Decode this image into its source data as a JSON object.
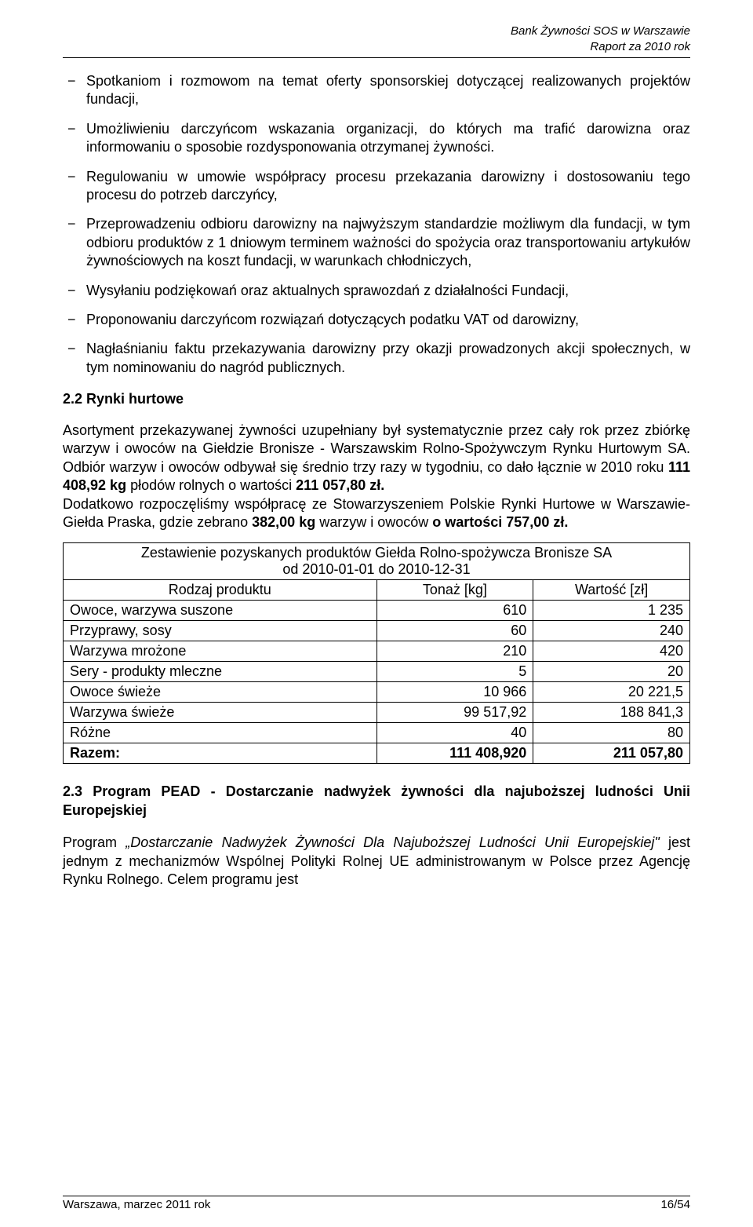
{
  "header": {
    "line1": "Bank Żywności SOS w Warszawie",
    "line2": "Raport za 2010 rok"
  },
  "bullets": [
    "Spotkaniom i rozmowom na temat oferty sponsorskiej dotyczącej realizowanych projektów fundacji,",
    "Umożliwieniu darczyńcom wskazania organizacji, do których ma trafić darowizna oraz informowaniu o sposobie rozdysponowania otrzymanej żywności.",
    "Regulowaniu w umowie współpracy procesu przekazania darowizny i dostosowaniu tego procesu do potrzeb darczyńcy,",
    "Przeprowadzeniu odbioru darowizny na najwyższym standardzie możliwym dla fundacji, w tym odbioru produktów z 1 dniowym terminem ważności do spożycia oraz transportowaniu artykułów żywnościowych na koszt fundacji, w warunkach chłodniczych,",
    "Wysyłaniu podziękowań oraz aktualnych sprawozdań z działalności Fundacji,",
    "Proponowaniu darczyńcom rozwiązań dotyczących podatku VAT od darowizny,",
    "Nagłaśnianiu faktu przekazywania darowizny przy okazji prowadzonych akcji społecznych, w tym nominowaniu do nagród publicznych."
  ],
  "section22": {
    "heading": "2.2 Rynki hurtowe",
    "p1_a": "Asortyment przekazywanej żywności uzupełniany był systematycznie przez cały rok przez zbiórkę warzyw i owoców na Giełdzie Bronisze - Warszawskim Rolno-Spożywczym Rynku Hurtowym SA. Odbiór warzyw i owoców odbywał się średnio trzy razy w tygodniu, co dało łącznie w 2010 roku ",
    "p1_bold1": "111 408,92 kg",
    "p1_b": " płodów rolnych o wartości ",
    "p1_bold2": "211 057,80 zł.",
    "p2_a": "Dodatkowo rozpoczęliśmy współpracę ze Stowarzyszeniem Polskie Rynki Hurtowe w Warszawie- Giełda Praska, gdzie zebrano ",
    "p2_bold1": "382,00 kg",
    "p2_b": " warzyw i owoców ",
    "p2_bold2": "o wartości 757,00 zł."
  },
  "table": {
    "title": "Zestawienie pozyskanych produktów Giełda Rolno-spożywcza Bronisze SA\nod 2010-01-01 do 2010-12-31",
    "columns": [
      "Rodzaj produktu",
      "Tonaż [kg]",
      "Wartość [zł]"
    ],
    "col_widths": [
      "50%",
      "25%",
      "25%"
    ],
    "rows": [
      [
        "Owoce, warzywa suszone",
        "610",
        "1 235"
      ],
      [
        "Przyprawy, sosy",
        "60",
        "240"
      ],
      [
        "Warzywa mrożone",
        "210",
        "420"
      ],
      [
        "Sery - produkty mleczne",
        "5",
        "20"
      ],
      [
        "Owoce świeże",
        "10 966",
        "20 221,5"
      ],
      [
        "Warzywa świeże",
        "99 517,92",
        "188 841,3"
      ],
      [
        "Różne",
        "40",
        "80"
      ]
    ],
    "total": [
      "Razem:",
      "111 408,920",
      "211 057,80"
    ]
  },
  "section23": {
    "heading": "2.3 Program PEAD - Dostarczanie nadwyżek żywności dla najuboższej ludności Unii Europejskiej",
    "p1_a": "Program ",
    "p1_italic": "„Dostarczanie Nadwyżek Żywności Dla Najuboższej Ludności Unii Europejskiej\"",
    "p1_b": " jest jednym z mechanizmów Wspólnej Polityki Rolnej UE administrowanym w Polsce przez Agencję Rynku Rolnego. Celem programu jest"
  },
  "footer": {
    "left": "Warszawa, marzec 2011 rok",
    "right": "16/54"
  }
}
